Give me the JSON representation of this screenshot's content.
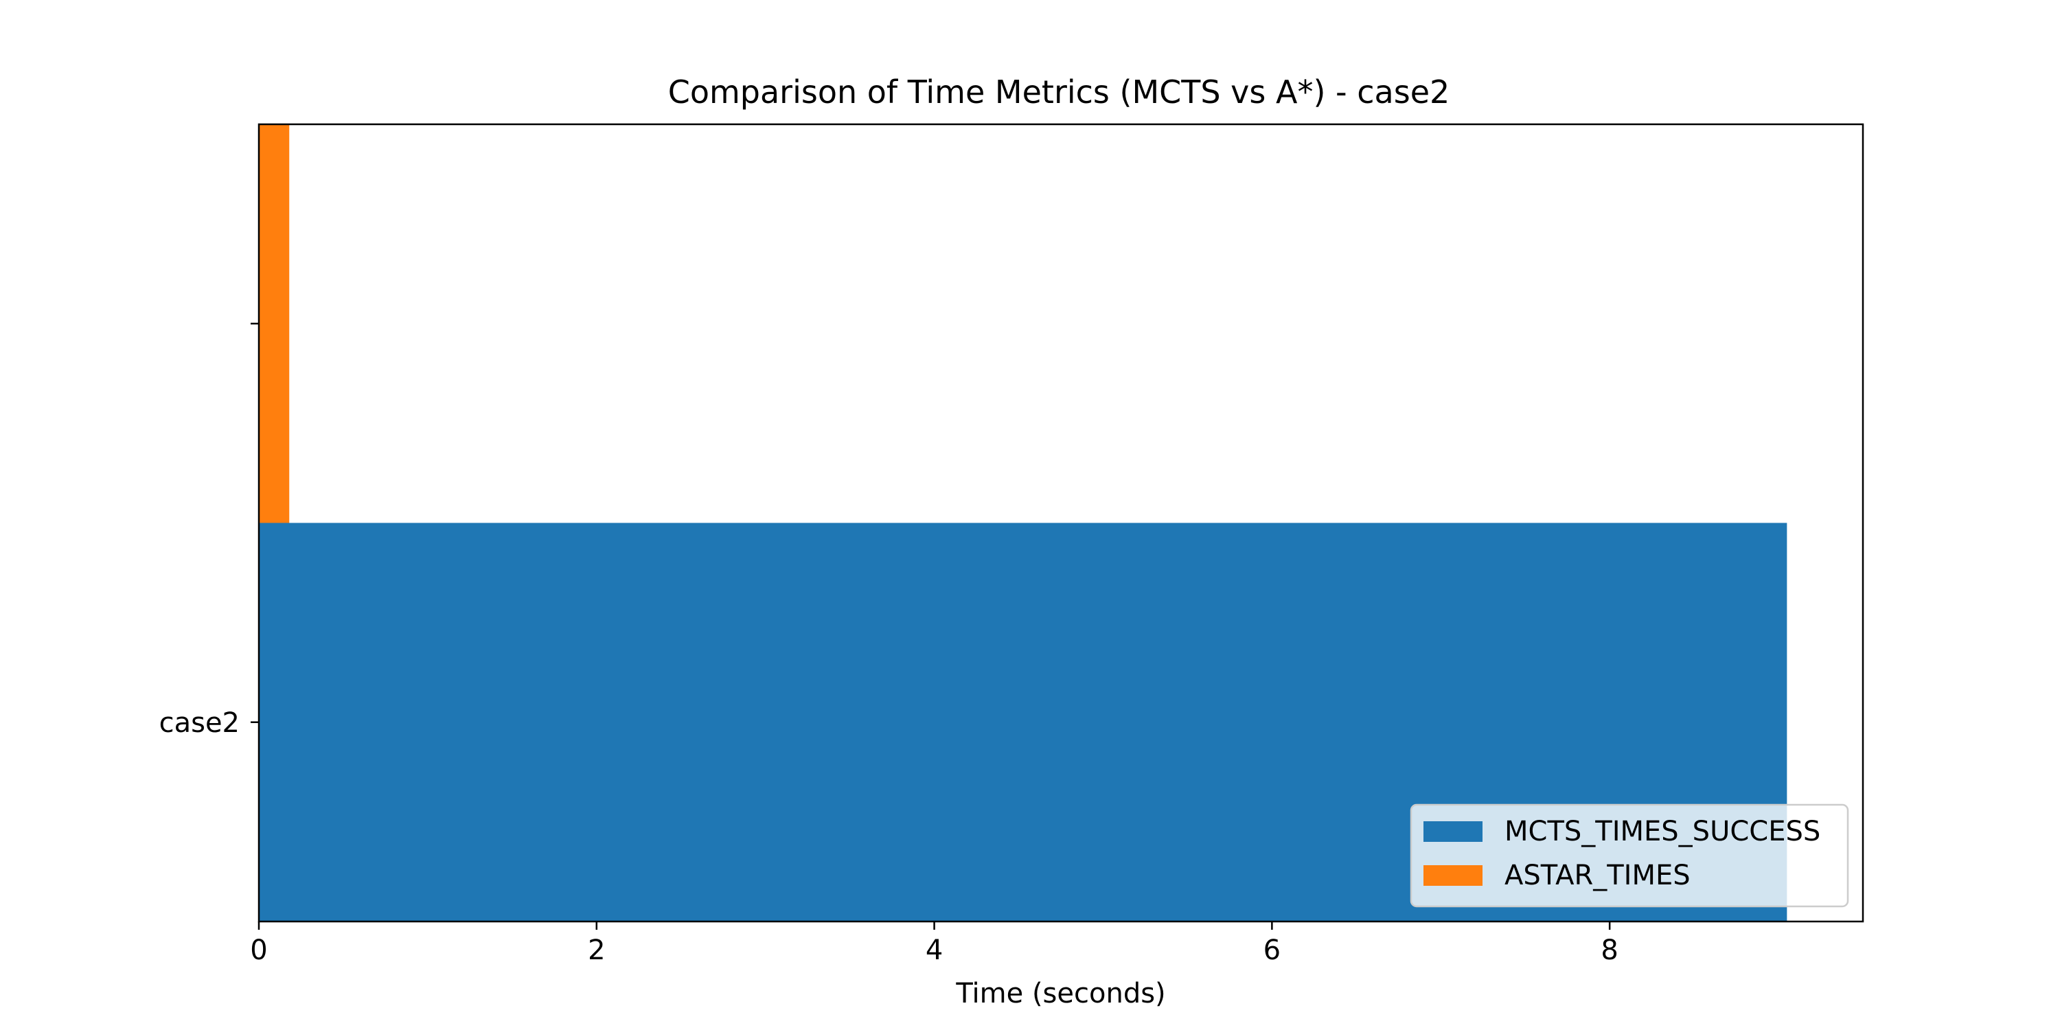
{
  "chart_data": {
    "type": "bar",
    "orientation": "horizontal",
    "title": "Comparison of Time Metrics (MCTS vs A*) - case2",
    "xlabel": "Time (seconds)",
    "ylabel": "",
    "xlim": [
      0,
      9.5
    ],
    "xticks": [
      0,
      2,
      4,
      6,
      8
    ],
    "categories": [
      "case2"
    ],
    "series": [
      {
        "name": "MCTS_TIMES_SUCCESS",
        "values": [
          9.05
        ],
        "color": "#1f77b4"
      },
      {
        "name": "ASTAR_TIMES",
        "values": [
          0.18
        ],
        "color": "#ff7f0e"
      }
    ],
    "grid": false,
    "legend_position": "lower-right"
  }
}
